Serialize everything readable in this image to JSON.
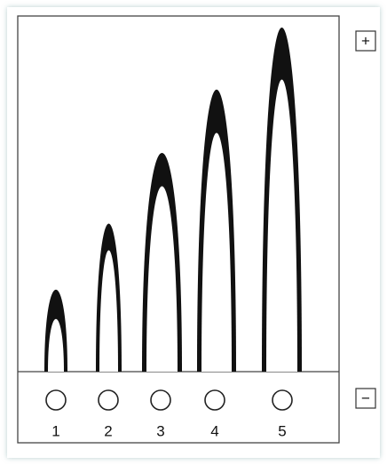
{
  "electrodes": {
    "plus": "+",
    "minus": "−"
  },
  "wells": [
    {
      "label": "1"
    },
    {
      "label": "2"
    },
    {
      "label": "3"
    },
    {
      "label": "4"
    },
    {
      "label": "5"
    }
  ]
}
